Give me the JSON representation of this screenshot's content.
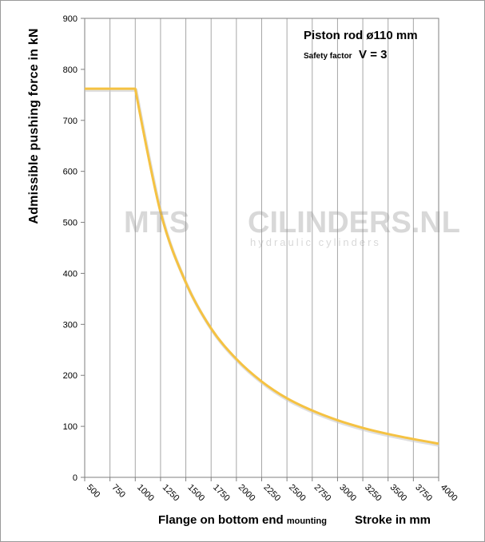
{
  "chart_data": {
    "type": "line",
    "title": "Piston rod ø110 mm",
    "subtitle_label": "Safety factor",
    "subtitle_value": "V = 3",
    "ylabel": "Admissible pushing force in kN",
    "xlabel_main": "Flange on bottom end",
    "xlabel_small": "mounting",
    "xlabel_right": "Stroke in mm",
    "ylim": [
      0,
      900
    ],
    "xlim": [
      500,
      4000
    ],
    "y_ticks": [
      0,
      100,
      200,
      300,
      400,
      500,
      600,
      700,
      800,
      900
    ],
    "x_ticks": [
      500,
      750,
      1000,
      1250,
      1500,
      1750,
      2000,
      2250,
      2500,
      2750,
      3000,
      3250,
      3500,
      3750,
      4000
    ],
    "grid": "vertical",
    "series": [
      {
        "x": [
          500,
          750,
          1000,
          1250,
          1500,
          1750,
          2000,
          2250,
          2500,
          2750,
          3000,
          3250,
          3500,
          3750,
          4000
        ],
        "y": [
          762,
          762,
          762,
          520,
          382,
          292,
          232,
          188,
          155,
          131,
          112,
          97,
          85,
          75,
          66
        ],
        "color": "#F5C242"
      }
    ]
  },
  "watermark": {
    "brand_left": "MTS",
    "brand_right": "CILINDERS.NL",
    "tagline": "hydraulic cylinders"
  }
}
